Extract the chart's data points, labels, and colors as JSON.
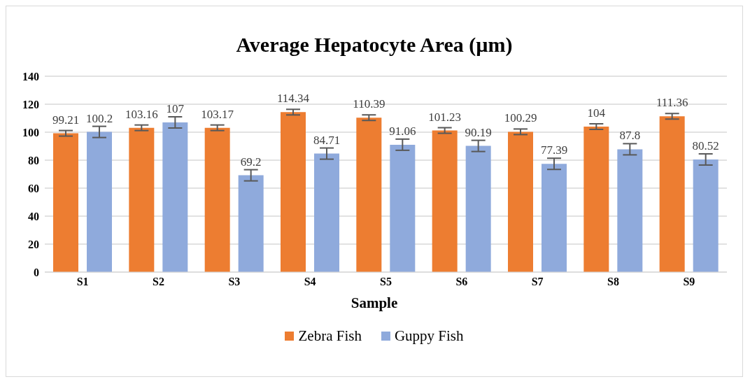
{
  "chart_data": {
    "type": "bar",
    "title": "Average Hepatocyte Area (µm)",
    "xlabel": "Sample",
    "categories": [
      "S1",
      "S2",
      "S3",
      "S4",
      "S5",
      "S6",
      "S7",
      "S8",
      "S9"
    ],
    "series": [
      {
        "name": "Zebra Fish",
        "color": "#ed7d31",
        "values": [
          99.21,
          103.16,
          103.17,
          114.34,
          110.39,
          101.23,
          100.29,
          104,
          111.36
        ],
        "errors": [
          2,
          2,
          2,
          2,
          2,
          2,
          2,
          2,
          2
        ]
      },
      {
        "name": "Guppy Fish",
        "color": "#8faadc",
        "values": [
          100.2,
          107,
          69.2,
          84.71,
          91.06,
          90.19,
          77.39,
          87.8,
          80.52
        ],
        "errors": [
          4,
          4,
          4,
          4,
          4,
          4,
          4,
          4,
          4
        ]
      }
    ],
    "ylim": [
      0,
      140
    ],
    "yticks": [
      0,
      20,
      40,
      60,
      80,
      100,
      120,
      140
    ],
    "grid": "y",
    "legend": "bottom",
    "data_labels": true
  }
}
